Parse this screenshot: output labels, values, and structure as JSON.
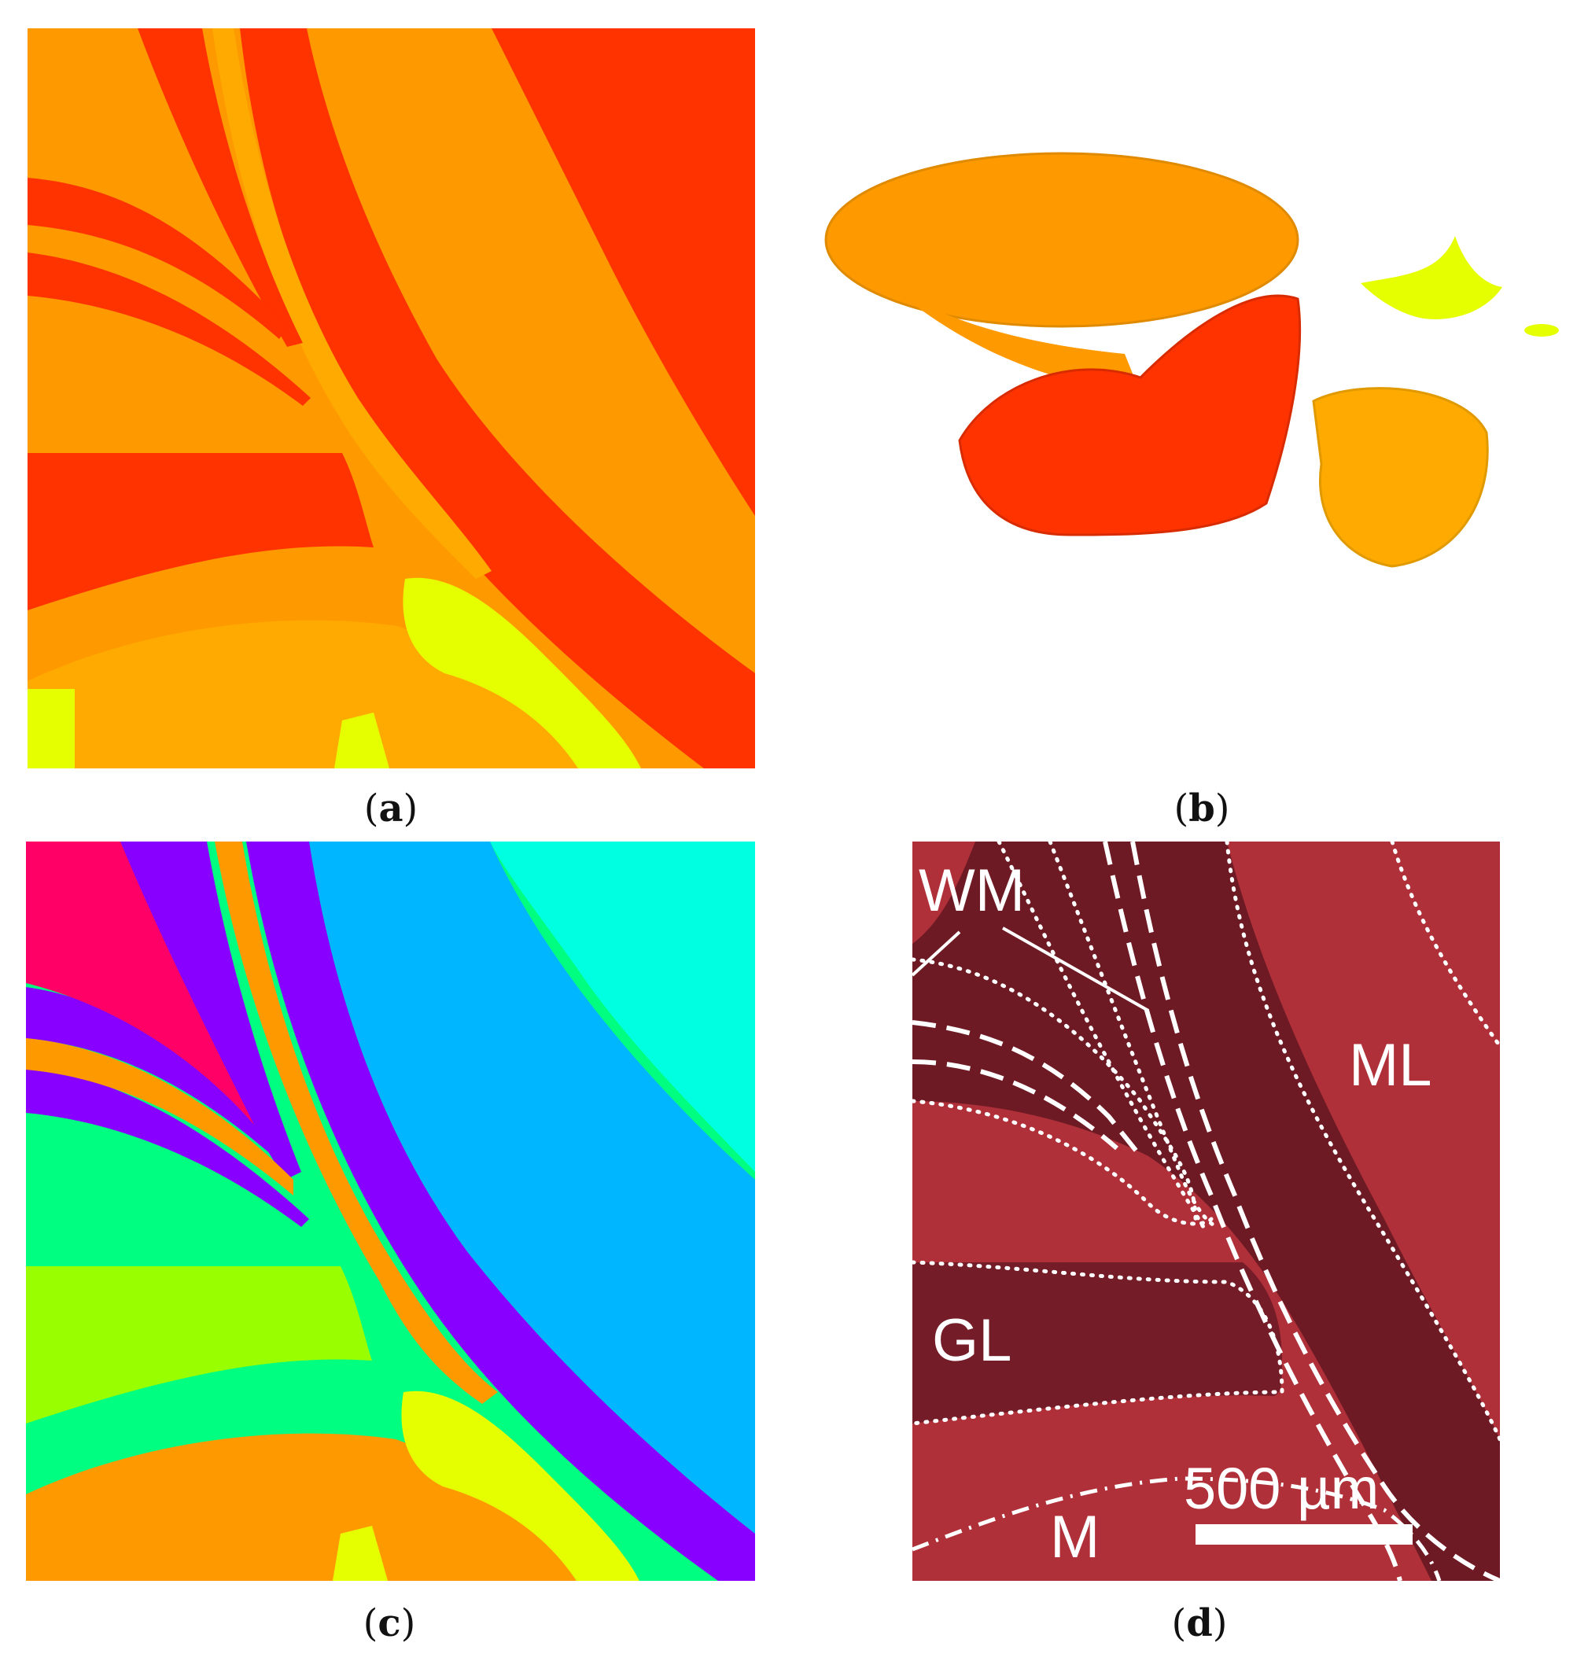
{
  "figure": {
    "panels": [
      {
        "id": "a",
        "caption_open": "(",
        "caption_letter": "a",
        "caption_close": ")"
      },
      {
        "id": "b",
        "caption_open": "(",
        "caption_letter": "b",
        "caption_close": ")"
      },
      {
        "id": "c",
        "caption_open": "(",
        "caption_letter": "c",
        "caption_close": ")"
      },
      {
        "id": "d",
        "caption_open": "(",
        "caption_letter": "d",
        "caption_close": ")"
      }
    ],
    "panel_d_labels": {
      "wm": "WM",
      "ml": "ML",
      "gl": "GL",
      "m": "M",
      "scale_bar": "500 µm"
    },
    "colors": {
      "red": "#ff3300",
      "orange": "#ff9900",
      "light_orange": "#ffaa00",
      "yellow": "#e6ff00",
      "magenta": "#ff0066",
      "purple": "#8800ff",
      "sky_blue": "#00b7ff",
      "cyan": "#00ffe0",
      "green": "#00ff80",
      "lime": "#99ff00",
      "tissue_red": "#b0303a",
      "tissue_dark": "#6e1a24"
    }
  }
}
